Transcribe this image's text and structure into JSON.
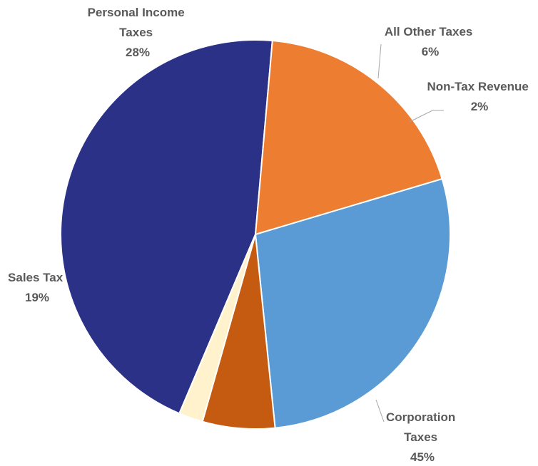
{
  "chart_data": {
    "type": "pie",
    "categories": [
      "Corporation Taxes",
      "Sales Tax",
      "Personal Income Taxes",
      "All Other Taxes",
      "Non-Tax Revenue"
    ],
    "values": [
      45,
      19,
      28,
      6,
      2
    ],
    "unit": "%",
    "colors": [
      "#2b3187",
      "#ed7d31",
      "#5b9bd5",
      "#c55a11",
      "#fff2cc"
    ],
    "labels": [
      {
        "lines": [
          "Corporation",
          "Taxes"
        ],
        "pct": "45%"
      },
      {
        "lines": [
          "Sales Tax"
        ],
        "pct": "19%"
      },
      {
        "lines": [
          "Personal Income",
          "Taxes"
        ],
        "pct": "28%"
      },
      {
        "lines": [
          "All Other Taxes"
        ],
        "pct": "6%"
      },
      {
        "lines": [
          "Non-Tax Revenue"
        ],
        "pct": "2%"
      }
    ],
    "legend": "none"
  }
}
